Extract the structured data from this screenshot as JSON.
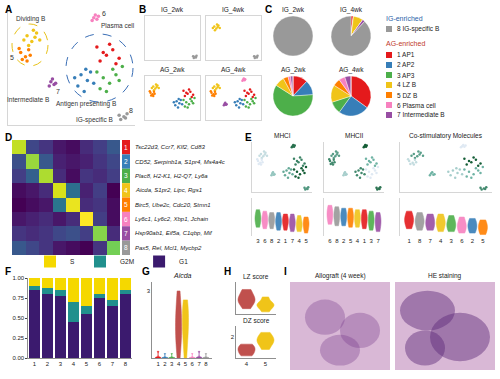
{
  "chart_data": [
    {
      "panel": "A",
      "type": "scatter",
      "tick_labels": false,
      "xlim": [
        -40,
        40
      ],
      "ylim": [
        -42,
        42
      ],
      "annotations": [
        "Dividing B",
        "Plasma cell",
        "Intermediate B",
        "Antigen presenting B",
        "IG-specific B",
        "5",
        "6",
        "7",
        "8"
      ],
      "series": [
        {
          "name": "1",
          "color": "#e41a1c",
          "x": [
            22,
            26,
            18,
            28,
            24,
            20,
            30,
            16
          ],
          "y": [
            8,
            12,
            4,
            2,
            16,
            10,
            6,
            14
          ]
        },
        {
          "name": "2",
          "color": "#377eb8",
          "x": [
            6,
            10,
            4,
            12,
            8,
            14,
            2,
            9
          ],
          "y": [
            -6,
            -10,
            -14,
            -4,
            -18,
            -12,
            -8,
            -2
          ]
        },
        {
          "name": "3",
          "color": "#4daf4a",
          "x": [
            20,
            24,
            28,
            18,
            26,
            30,
            22,
            16,
            32
          ],
          "y": [
            -8,
            -12,
            -6,
            -16,
            -2,
            -10,
            -18,
            -4,
            0
          ]
        },
        {
          "name": "4",
          "color": "#f0c419",
          "x": [
            -28,
            -25,
            -22,
            -27,
            -24,
            -20,
            -30,
            -23
          ],
          "y": [
            22,
            18,
            24,
            15,
            26,
            19,
            19,
            21
          ]
        },
        {
          "name": "5",
          "color": "#ff7f00",
          "x": [
            -32,
            -29,
            -27,
            -31,
            -26,
            -33,
            -28
          ],
          "y": [
            10,
            7,
            12,
            5,
            8,
            13,
            4
          ]
        },
        {
          "name": "6",
          "color": "#f781bf",
          "x": [
            14,
            16,
            15,
            17,
            13
          ],
          "y": [
            35,
            34,
            37,
            36,
            33
          ]
        },
        {
          "name": "7",
          "color": "#984ea3",
          "x": [
            -13,
            -11,
            -12,
            -10,
            -14
          ],
          "y": [
            -11,
            -13,
            -9,
            -12,
            -14
          ]
        },
        {
          "name": "8",
          "color": "#999999",
          "x": [
            30,
            33,
            35,
            31,
            34
          ],
          "y": [
            -35,
            -36,
            -34,
            -38,
            -37
          ]
        }
      ]
    },
    {
      "panel": "B",
      "type": "scatter",
      "tick_labels": false,
      "xlim": [
        -40,
        40
      ],
      "ylim": [
        -42,
        42
      ],
      "panels": [
        {
          "title": "IG_2wk",
          "clusters": [
            "8"
          ]
        },
        {
          "title": "IG_4wk",
          "clusters": [
            "8",
            "4"
          ]
        },
        {
          "title": "AG_2wk",
          "clusters": [
            "3",
            "2",
            "1",
            "4",
            "5"
          ]
        },
        {
          "title": "AG_4wk",
          "clusters": [
            "1",
            "2",
            "3",
            "4",
            "5",
            "6",
            "7"
          ]
        }
      ]
    },
    {
      "panel": "C",
      "type": "pie",
      "categories": [
        "1 AP1",
        "2 AP2",
        "3 AP3",
        "4 LZ B",
        "5 DZ B",
        "6 Plasma cell",
        "7 Intermediate B",
        "8 IG-specific B"
      ],
      "colors": [
        "#e41a1c",
        "#377eb8",
        "#4daf4a",
        "#f0c419",
        "#ff7f00",
        "#f781bf",
        "#984ea3",
        "#999999"
      ],
      "groups": [
        {
          "title": "IG-enriched",
          "members": [
            "8 IG-specific B"
          ]
        },
        {
          "title": "AG-enriched",
          "members": [
            "1 AP1",
            "2 AP2",
            "3 AP3",
            "4 LZ B",
            "5 DZ B",
            "6 Plasma cell",
            "7 Intermediate B"
          ]
        }
      ],
      "pies": [
        {
          "title": "IG_2wk",
          "values": [
            0,
            0,
            0,
            0,
            0,
            0,
            0,
            100
          ]
        },
        {
          "title": "IG_4wk",
          "values": [
            2,
            0,
            0,
            8,
            0,
            0,
            2,
            88
          ]
        },
        {
          "title": "AG_2wk",
          "values": [
            12,
            12,
            60,
            8,
            4,
            2,
            2,
            0
          ]
        },
        {
          "title": "AG_4wk",
          "values": [
            35,
            25,
            10,
            14,
            6,
            5,
            5,
            0
          ]
        }
      ]
    },
    {
      "panel": "D",
      "type": "heatmap",
      "rows": [
        "1",
        "2",
        "3",
        "4",
        "5",
        "6",
        "7",
        "8"
      ],
      "row_colors": [
        "#e41a1c",
        "#377eb8",
        "#4daf4a",
        "#f0c419",
        "#ff7f00",
        "#f781bf",
        "#984ea3",
        "#999999"
      ],
      "genes": [
        "Tsc22d3, Ccr7, Klf2, Cd83",
        "CD52, Serpinb1a, S1pr4, Ms4a4c",
        "Plac8, H2-K1, H2-Q7, Ly6a",
        "Aicda, S1pr2, Lipc, Rgs1",
        "Birc5, Ube2c, Cdc20, Stmn1",
        "Ly6c1, Ly6c2, Xbp1, Jchain",
        "Hsp90ab1, Eif5a, C1qbp, Mif",
        "Pax5, Rel, Mcl1, Mycbp2"
      ],
      "z": [
        [
          2.6,
          0.3,
          0.1,
          -0.2,
          -0.3,
          0.0,
          0.2,
          0.5
        ],
        [
          0.4,
          2.4,
          0.5,
          -0.1,
          -0.2,
          -0.1,
          0.1,
          0.3
        ],
        [
          0.2,
          0.6,
          2.5,
          0.0,
          -0.3,
          0.1,
          0.0,
          0.2
        ],
        [
          -0.3,
          -0.2,
          0.0,
          2.7,
          0.8,
          -0.1,
          0.2,
          -0.4
        ],
        [
          -0.4,
          -0.3,
          -0.2,
          0.9,
          2.8,
          0.0,
          0.1,
          -0.3
        ],
        [
          -0.2,
          -0.1,
          0.0,
          -0.2,
          0.0,
          2.9,
          0.2,
          -0.3
        ],
        [
          0.1,
          0.0,
          0.1,
          0.3,
          0.4,
          0.2,
          2.3,
          0.0
        ],
        [
          0.5,
          0.3,
          0.1,
          -0.2,
          -0.3,
          -0.4,
          0.1,
          2.2
        ]
      ]
    },
    {
      "panel": "E",
      "type": "violin",
      "tick_labels": "x",
      "xlim": [
        -40,
        40
      ],
      "ylim": [
        -42,
        42
      ],
      "panels": [
        {
          "title": "MHCI",
          "expression": {
            "1": 0.7,
            "2": 0.6,
            "3": 0.8,
            "4": 0.4,
            "5": 0.35,
            "6": 0.75,
            "7": 0.5,
            "8": 0.65
          },
          "order": [
            "3",
            "6",
            "8",
            "2",
            "1",
            "7",
            "4",
            "5"
          ],
          "ylim": [
            0,
            2.6
          ],
          "samples": [
            [
              0.6,
              1.0,
              1.2,
              1.4,
              1.8
            ],
            [
              0.5,
              0.9,
              1.1,
              1.3,
              1.7
            ],
            [
              0.5,
              0.9,
              1.1,
              1.3,
              1.6
            ],
            [
              0.4,
              0.8,
              1.0,
              1.2,
              1.6
            ],
            [
              0.4,
              0.8,
              1.0,
              1.2,
              1.5
            ],
            [
              0.3,
              0.7,
              0.9,
              1.1,
              1.5
            ],
            [
              0.3,
              0.6,
              0.8,
              1.0,
              1.4
            ],
            [
              0.2,
              0.6,
              0.8,
              1.0,
              1.3
            ]
          ]
        },
        {
          "title": "MHCII",
          "expression": {
            "1": 0.6,
            "2": 0.7,
            "3": 0.4,
            "4": 0.65,
            "5": 0.7,
            "6": 0.8,
            "7": 0.5,
            "8": 0.75
          },
          "order": [
            "6",
            "8",
            "2",
            "5",
            "4",
            "1",
            "3",
            "7"
          ],
          "ylim": [
            0,
            2.6
          ],
          "samples": [
            [
              0.8,
              1.2,
              1.5,
              1.7,
              2.1
            ],
            [
              0.7,
              1.1,
              1.4,
              1.6,
              2.0
            ],
            [
              0.7,
              1.1,
              1.3,
              1.6,
              1.9
            ],
            [
              0.6,
              1.0,
              1.3,
              1.5,
              1.9
            ],
            [
              0.6,
              1.0,
              1.2,
              1.5,
              1.8
            ],
            [
              0.5,
              0.9,
              1.2,
              1.4,
              1.8
            ],
            [
              0.4,
              0.8,
              1.1,
              1.3,
              1.7
            ],
            [
              0.3,
              0.7,
              1.0,
              1.2,
              1.6
            ]
          ]
        },
        {
          "title": "Co-stimulatory Molecules",
          "expression": {
            "1": 0.7,
            "2": 0.4,
            "3": 0.5,
            "4": 0.55,
            "5": 0.35,
            "6": 0.3,
            "7": 0.5,
            "8": 0.6
          },
          "order": [
            "1",
            "8",
            "7",
            "4",
            "3",
            "6",
            "2",
            "5"
          ],
          "ylim": [
            0,
            2.6
          ],
          "samples": [
            [
              0.5,
              0.9,
              1.1,
              1.3,
              1.7
            ],
            [
              0.4,
              0.8,
              1.0,
              1.2,
              1.6
            ],
            [
              0.4,
              0.7,
              0.9,
              1.2,
              1.5
            ],
            [
              0.3,
              0.7,
              0.9,
              1.1,
              1.5
            ],
            [
              0.3,
              0.6,
              0.8,
              1.0,
              1.4
            ],
            [
              0.2,
              0.5,
              0.7,
              0.9,
              1.3
            ],
            [
              0.2,
              0.5,
              0.7,
              0.9,
              1.2
            ],
            [
              0.1,
              0.4,
              0.6,
              0.8,
              1.1
            ]
          ]
        }
      ]
    },
    {
      "panel": "F",
      "type": "bar",
      "stacked": true,
      "legend": "top",
      "categories": [
        "1",
        "2",
        "3",
        "4",
        "5",
        "6",
        "7",
        "8"
      ],
      "series": [
        {
          "name": "G1",
          "color": "#3b1a6e",
          "values": [
            0.85,
            0.8,
            0.78,
            0.45,
            0.55,
            0.75,
            0.65,
            0.8
          ]
        },
        {
          "name": "G2M",
          "color": "#21908d",
          "values": [
            0.05,
            0.07,
            0.07,
            0.25,
            0.1,
            0.05,
            0.08,
            0.05
          ]
        },
        {
          "name": "S",
          "color": "#f5d800",
          "values": [
            0.1,
            0.13,
            0.15,
            0.3,
            0.35,
            0.2,
            0.27,
            0.15
          ]
        }
      ],
      "ylim": [
        0,
        1
      ],
      "yticks": [
        {
          "value": 0,
          "label": "0.00"
        },
        {
          "value": 0.25,
          "label": "0.25"
        },
        {
          "value": 0.5,
          "label": "0.50"
        },
        {
          "value": 0.75,
          "label": "0.75"
        },
        {
          "value": 1,
          "label": "1.00"
        }
      ]
    },
    {
      "panel": "G",
      "type": "violin",
      "title": "Aicda",
      "categories": [
        "1",
        "2",
        "3",
        "4",
        "5",
        "6",
        "7",
        "8"
      ],
      "colors": [
        "#e41a1c",
        "#377eb8",
        "#4daf4a",
        "#c0504d",
        "#f0c419",
        "#f781bf",
        "#984ea3",
        "#999999"
      ],
      "samples": [
        [
          0,
          0,
          0,
          0,
          0.3
        ],
        [
          0,
          0,
          0,
          0,
          0.2
        ],
        [
          0,
          0,
          0,
          0,
          0.2
        ],
        [
          0,
          0.5,
          1,
          1.5,
          2,
          2.5,
          3,
          1,
          1.8
        ],
        [
          0,
          0.8,
          1.5,
          2,
          2.6,
          1.2,
          2.2
        ],
        [
          0,
          0,
          0,
          0,
          0.2
        ],
        [
          0,
          0,
          0,
          0,
          0.3
        ],
        [
          0,
          0,
          0,
          0,
          0.2
        ]
      ],
      "ylim": [
        0,
        3.4
      ],
      "yticks": [
        3
      ]
    },
    {
      "panel": "H",
      "type": "violin",
      "panels": [
        {
          "title": "LZ score",
          "categories": [
            "4",
            "5"
          ],
          "colors": [
            "#c0504d",
            "#f0c419"
          ],
          "tick_labels": false,
          "ylim": [
            0,
            3
          ],
          "samples": [
            [
              0.5,
              1,
              1.2,
              1.5,
              2,
              2.3,
              1.4
            ],
            [
              0.2,
              0.6,
              0.9,
              1.1,
              1.6,
              0.8
            ]
          ]
        },
        {
          "title": "DZ score",
          "categories": [
            "4",
            "5"
          ],
          "colors": [
            "#c0504d",
            "#f0c419"
          ],
          "tick_labels": true,
          "ylim": [
            0,
            3
          ],
          "yticks": [
            2
          ],
          "samples": [
            [
              0.2,
              0.5,
              0.8,
              1,
              1.3
            ],
            [
              0.8,
              1.3,
              1.7,
              2,
              2.4,
              1.6
            ]
          ]
        }
      ]
    },
    {
      "panel": "I",
      "type": "image",
      "panels": [
        {
          "title": "Allograft (4 week)"
        },
        {
          "title": "HE staining"
        }
      ]
    }
  ]
}
